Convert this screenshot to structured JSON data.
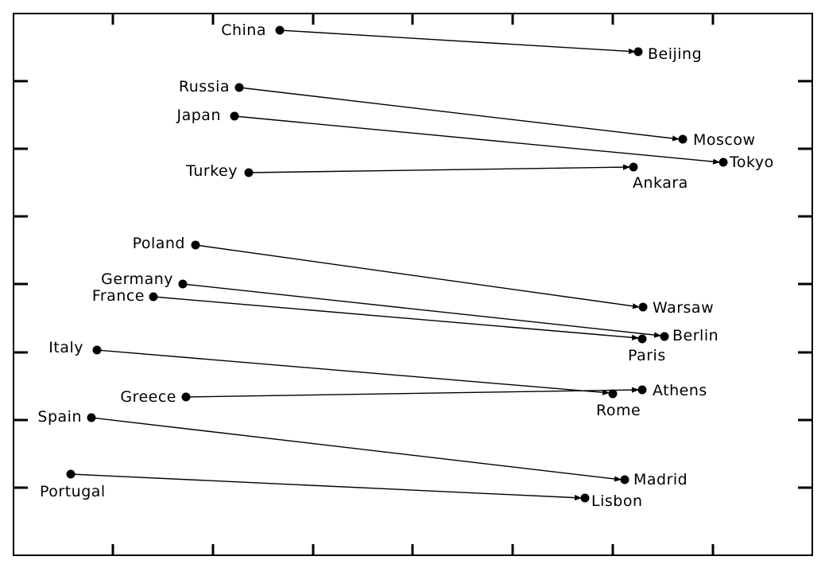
{
  "diagram": {
    "type": "country-to-capital arrow diagram",
    "colors": {
      "line": "#000000",
      "background": "#ffffff"
    },
    "pairs": [
      {
        "country": "China",
        "capital": "Beijing"
      },
      {
        "country": "Russia",
        "capital": "Moscow"
      },
      {
        "country": "Japan",
        "capital": "Tokyo"
      },
      {
        "country": "Turkey",
        "capital": "Ankara"
      },
      {
        "country": "Poland",
        "capital": "Warsaw"
      },
      {
        "country": "Germany",
        "capital": "Berlin"
      },
      {
        "country": "France",
        "capital": "Paris"
      },
      {
        "country": "Italy",
        "capital": "Rome"
      },
      {
        "country": "Greece",
        "capital": "Athens"
      },
      {
        "country": "Spain",
        "capital": "Madrid"
      },
      {
        "country": "Portugal",
        "capital": "Lisbon"
      }
    ]
  }
}
